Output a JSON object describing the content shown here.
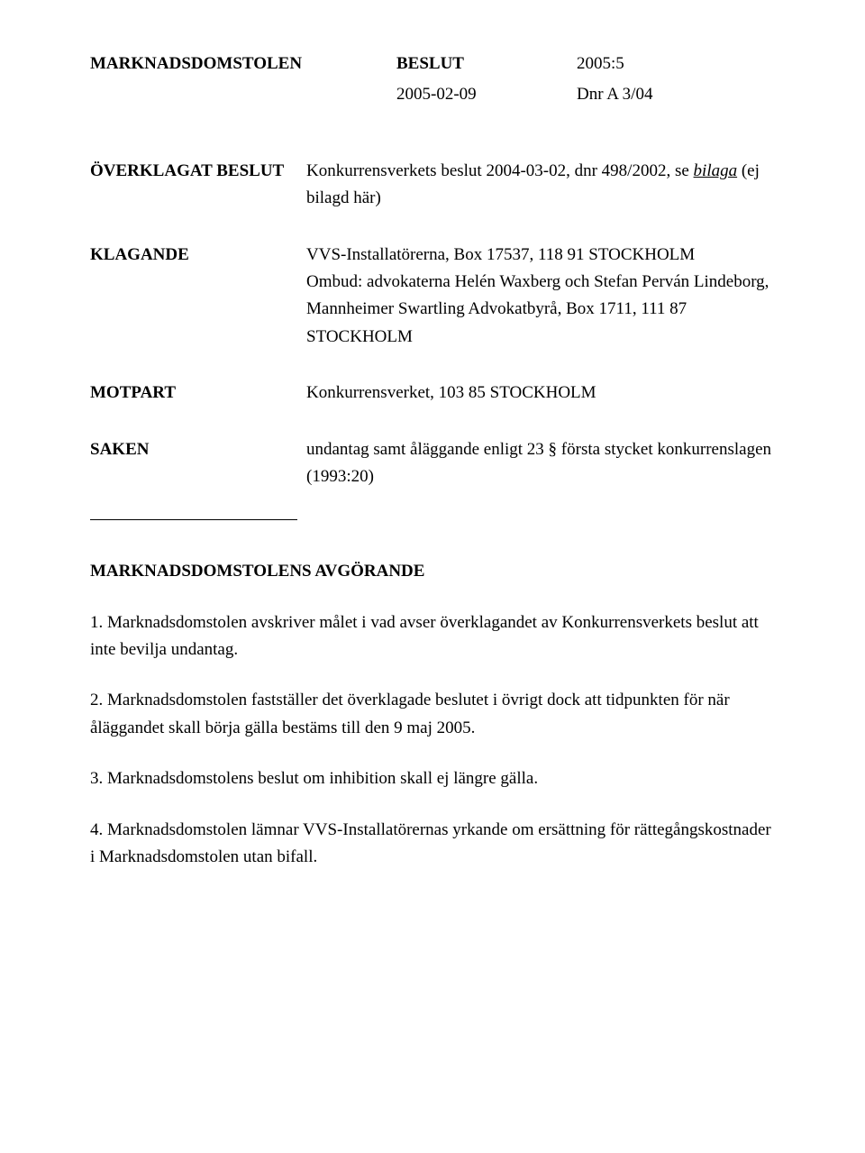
{
  "header": {
    "court": "MARKNADSDOMSTOLEN",
    "doc_type": "BESLUT",
    "case_no": "2005:5",
    "date": "2005-02-09",
    "dnr": "Dnr A 3/04"
  },
  "defs": {
    "overklagat_label": "ÖVERKLAGAT BESLUT",
    "overklagat_pre": "Konkurrensverkets beslut 2004-03-02, dnr 498/2002, se ",
    "overklagat_bilaga": "bilaga",
    "overklagat_post": " (ej bilagd här)",
    "klagande_label": "KLAGANDE",
    "klagande_line1": "VVS-Installatörerna, Box 17537, 118 91 STOCKHOLM",
    "klagande_line2": "Ombud: advokaterna Helén Waxberg och Stefan Perván Lindeborg, Mannheimer Swartling Advokatbyrå, Box 1711, 111 87 STOCKHOLM",
    "motpart_label": "MOTPART",
    "motpart_body": "Konkurrensverket, 103 85 STOCKHOLM",
    "saken_label": "SAKEN",
    "saken_body": "undantag samt åläggande enligt 23 § första stycket konkurrenslagen (1993:20)"
  },
  "ruling": {
    "title": "MARKNADSDOMSTOLENS AVGÖRANDE",
    "p1": "1. Marknadsdomstolen avskriver målet i vad avser överklagandet av Konkurrensverkets beslut att inte bevilja undantag.",
    "p2": "2. Marknadsdomstolen fastställer det överklagade beslutet i övrigt dock att tidpunkten för när åläggandet skall börja gälla bestäms till den 9 maj 2005.",
    "p3": "3. Marknadsdomstolens beslut om inhibition skall ej längre gälla.",
    "p4": "4. Marknadsdomstolen lämnar VVS-Installatörernas yrkande om ersättning för rättegångskostnader i Marknadsdomstolen utan bifall."
  }
}
